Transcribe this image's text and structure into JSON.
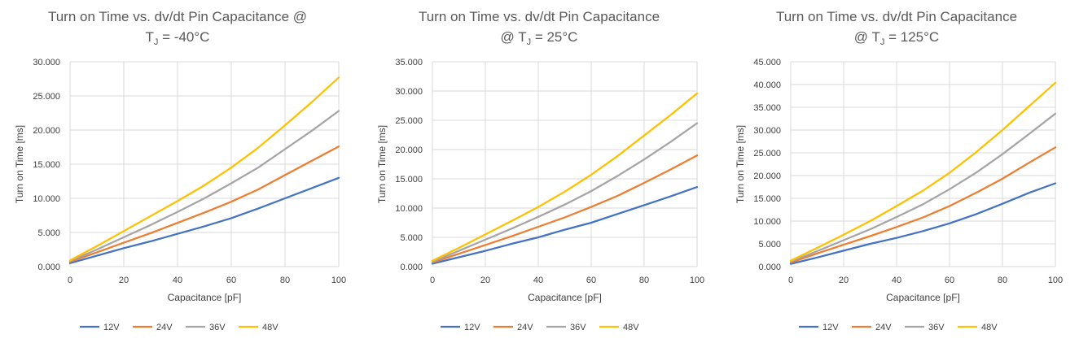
{
  "chart_data": [
    {
      "type": "line",
      "title": [
        "Turn on Time vs. dv/dt Pin Capacitance @",
        "T",
        "J",
        " = -40°C"
      ],
      "xlabel": "Capacitance [pF]",
      "ylabel": "Turn on Time [ms]",
      "xlim": [
        0,
        100
      ],
      "ylim": [
        0,
        30
      ],
      "xticks": [
        0,
        20,
        40,
        60,
        80,
        100
      ],
      "yticks": [
        0,
        5,
        10,
        15,
        20,
        25,
        30
      ],
      "ytick_labels": [
        "0.000",
        "5.000",
        "10.000",
        "15.000",
        "20.000",
        "25.000",
        "30.000"
      ],
      "grid": true,
      "legend": "bottom",
      "x": [
        0,
        10,
        20,
        30,
        40,
        50,
        60,
        70,
        80,
        90,
        100
      ],
      "series": [
        {
          "name": "12V",
          "color": "#4472c4",
          "values": [
            0.5,
            1.6,
            2.7,
            3.7,
            4.8,
            5.9,
            7.1,
            8.5,
            10.0,
            11.5,
            13.0
          ]
        },
        {
          "name": "24V",
          "color": "#ed7d31",
          "values": [
            0.7,
            2.1,
            3.5,
            4.9,
            6.4,
            7.9,
            9.5,
            11.3,
            13.4,
            15.5,
            17.6
          ]
        },
        {
          "name": "36V",
          "color": "#a5a5a5",
          "values": [
            0.8,
            2.5,
            4.3,
            6.1,
            8.0,
            10.0,
            12.2,
            14.5,
            17.2,
            19.9,
            22.8
          ]
        },
        {
          "name": "48V",
          "color": "#ffc000",
          "values": [
            0.9,
            3.0,
            5.2,
            7.4,
            9.6,
            11.9,
            14.5,
            17.4,
            20.7,
            24.1,
            27.7
          ]
        }
      ]
    },
    {
      "type": "line",
      "title": [
        "Turn on Time vs. dv/dt Pin Capacitance",
        "@ T",
        "J",
        " = 25°C"
      ],
      "xlabel": "Capacitance [pF]",
      "ylabel": "Turn on Time [ms]",
      "xlim": [
        0,
        100
      ],
      "ylim": [
        0,
        35
      ],
      "xticks": [
        0,
        20,
        40,
        60,
        80,
        100
      ],
      "yticks": [
        0,
        5,
        10,
        15,
        20,
        25,
        30,
        35
      ],
      "ytick_labels": [
        "0.000",
        "5.000",
        "10.000",
        "15.000",
        "20.000",
        "25.000",
        "30.000",
        "35.000"
      ],
      "grid": true,
      "legend": "bottom",
      "x": [
        0,
        10,
        20,
        30,
        40,
        50,
        60,
        70,
        80,
        90,
        100
      ],
      "series": [
        {
          "name": "12V",
          "color": "#4472c4",
          "values": [
            0.5,
            1.6,
            2.7,
            3.9,
            5.0,
            6.3,
            7.5,
            9.0,
            10.5,
            12.0,
            13.6
          ]
        },
        {
          "name": "24V",
          "color": "#ed7d31",
          "values": [
            0.7,
            2.2,
            3.7,
            5.2,
            6.8,
            8.4,
            10.2,
            12.1,
            14.3,
            16.6,
            19.0
          ]
        },
        {
          "name": "36V",
          "color": "#a5a5a5",
          "values": [
            0.8,
            2.7,
            4.6,
            6.5,
            8.5,
            10.6,
            12.9,
            15.5,
            18.3,
            21.3,
            24.5
          ]
        },
        {
          "name": "48V",
          "color": "#ffc000",
          "values": [
            1.0,
            3.2,
            5.5,
            7.8,
            10.2,
            12.8,
            15.7,
            18.9,
            22.4,
            25.9,
            29.6
          ]
        }
      ]
    },
    {
      "type": "line",
      "title": [
        "Turn on Time vs. dv/dt Pin Capacitance",
        "@ T",
        "J",
        " = 125°C"
      ],
      "xlabel": "Capacitance [pF]",
      "ylabel": "Turn on Time [ms]",
      "xlim": [
        0,
        100
      ],
      "ylim": [
        0,
        45
      ],
      "xticks": [
        0,
        20,
        40,
        60,
        80,
        100
      ],
      "yticks": [
        0,
        5,
        10,
        15,
        20,
        25,
        30,
        35,
        40,
        45
      ],
      "ytick_labels": [
        "0.000",
        "5.000",
        "10.000",
        "15.000",
        "20.000",
        "25.000",
        "30.000",
        "35.000",
        "40.000",
        "45.000"
      ],
      "grid": true,
      "legend": "bottom",
      "x": [
        0,
        10,
        20,
        30,
        40,
        50,
        60,
        70,
        80,
        90,
        100
      ],
      "series": [
        {
          "name": "12V",
          "color": "#4472c4",
          "values": [
            0.6,
            2.0,
            3.5,
            5.0,
            6.3,
            7.8,
            9.5,
            11.5,
            13.8,
            16.2,
            18.3
          ]
        },
        {
          "name": "24V",
          "color": "#ed7d31",
          "values": [
            0.9,
            2.9,
            4.8,
            6.7,
            8.7,
            10.8,
            13.3,
            16.2,
            19.3,
            22.8,
            26.2
          ]
        },
        {
          "name": "36V",
          "color": "#a5a5a5",
          "values": [
            1.1,
            3.4,
            5.8,
            8.2,
            10.9,
            13.7,
            17.0,
            20.6,
            24.7,
            29.1,
            33.6
          ]
        },
        {
          "name": "48V",
          "color": "#ffc000",
          "values": [
            1.3,
            4.1,
            7.0,
            10.0,
            13.3,
            16.7,
            20.6,
            25.1,
            30.0,
            35.2,
            40.4
          ]
        }
      ]
    }
  ]
}
